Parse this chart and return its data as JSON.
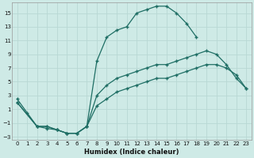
{
  "xlabel": "Humidex (Indice chaleur)",
  "bg_color": "#ceeae6",
  "grid_color": "#b8d8d4",
  "line_color": "#1e6e64",
  "xlim": [
    -0.5,
    23.5
  ],
  "ylim": [
    -3.5,
    16.5
  ],
  "xticks": [
    0,
    1,
    2,
    3,
    4,
    5,
    6,
    7,
    8,
    9,
    10,
    11,
    12,
    13,
    14,
    15,
    16,
    17,
    18,
    19,
    20,
    21,
    22,
    23
  ],
  "yticks": [
    -3,
    -1,
    1,
    3,
    5,
    7,
    9,
    11,
    13,
    15
  ],
  "line1_x": [
    0,
    1,
    2,
    3,
    4,
    5,
    6,
    7,
    8,
    9,
    10,
    11,
    12,
    13,
    14,
    15,
    16,
    17,
    18
  ],
  "line1_y": [
    2.5,
    0.5,
    -1.5,
    -1.8,
    -2.0,
    -2.5,
    -2.5,
    -1.5,
    8.0,
    11.5,
    12.5,
    13.0,
    15.0,
    15.5,
    16.0,
    16.0,
    15.0,
    13.5,
    11.5
  ],
  "line2_x": [
    0,
    2,
    3,
    4,
    5,
    6,
    7,
    8,
    9,
    10,
    11,
    12,
    13,
    14,
    15,
    16,
    17,
    18,
    19,
    20,
    21,
    22,
    23
  ],
  "line2_y": [
    2.0,
    -1.5,
    -1.5,
    -2.0,
    -2.5,
    -2.5,
    -1.5,
    3.0,
    4.5,
    5.5,
    6.0,
    6.5,
    7.0,
    7.5,
    7.5,
    8.0,
    8.5,
    9.0,
    9.5,
    9.0,
    7.5,
    5.5,
    4.0
  ],
  "line3_x": [
    0,
    2,
    3,
    4,
    5,
    6,
    7,
    8,
    9,
    10,
    11,
    12,
    13,
    14,
    15,
    16,
    17,
    18,
    19,
    20,
    21,
    22,
    23
  ],
  "line3_y": [
    2.0,
    -1.5,
    -1.5,
    -2.0,
    -2.5,
    -2.5,
    -1.5,
    1.5,
    2.5,
    3.5,
    4.0,
    4.5,
    5.0,
    5.5,
    5.5,
    6.0,
    6.5,
    7.0,
    7.5,
    7.5,
    7.0,
    6.0,
    4.0
  ]
}
